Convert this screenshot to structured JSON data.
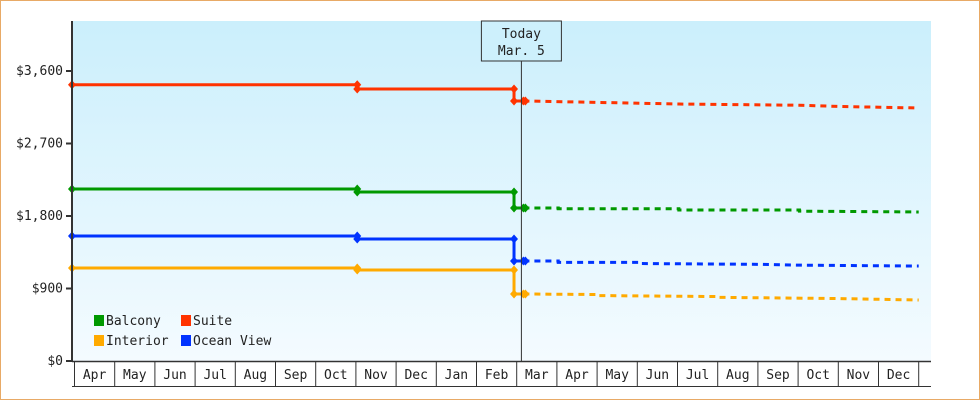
{
  "chart_data": {
    "type": "line",
    "title": "",
    "xlabel": "",
    "ylabel": "",
    "categories": [
      "Apr",
      "May",
      "Jun",
      "Jul",
      "Aug",
      "Sep",
      "Oct",
      "Nov",
      "Dec",
      "Jan",
      "Feb",
      "Mar",
      "Apr",
      "May",
      "Jun",
      "Jul",
      "Aug",
      "Sep",
      "Oct",
      "Nov",
      "Dec"
    ],
    "yticks": [
      {
        "value": 0,
        "label": "$0"
      },
      {
        "value": 900,
        "label": "$900"
      },
      {
        "value": 1800,
        "label": "$1,800"
      },
      {
        "value": 2700,
        "label": "$2,700"
      },
      {
        "value": 3600,
        "label": "$3,600"
      }
    ],
    "ylim": [
      0,
      3600
    ],
    "today": {
      "line1": "Today",
      "line2": "Mar. 5",
      "month_index": 11,
      "day": 5
    },
    "legend_position": "bottom-left",
    "series": [
      {
        "name": "Balcony",
        "color": "#009900",
        "history": [
          [
            0,
            0,
            2135
          ],
          [
            7,
            1,
            2135
          ],
          [
            7,
            1,
            2098
          ],
          [
            10,
            28,
            2098
          ],
          [
            10,
            28,
            1899
          ],
          [
            11,
            5,
            1899
          ]
        ],
        "forecast": [
          [
            11,
            5,
            1899
          ],
          [
            12,
            1,
            1899
          ],
          [
            12,
            1,
            1890
          ],
          [
            15,
            1,
            1890
          ],
          [
            15,
            1,
            1875
          ],
          [
            18,
            1,
            1875
          ],
          [
            18,
            1,
            1860
          ],
          [
            20,
            30,
            1850
          ]
        ]
      },
      {
        "name": "Suite",
        "color": "#ff3300",
        "history": [
          [
            0,
            0,
            3430
          ],
          [
            7,
            1,
            3430
          ],
          [
            7,
            1,
            3377
          ],
          [
            10,
            28,
            3377
          ],
          [
            10,
            28,
            3228
          ],
          [
            11,
            5,
            3228
          ]
        ],
        "forecast": [
          [
            11,
            5,
            3228
          ],
          [
            13,
            1,
            3210
          ],
          [
            15,
            1,
            3190
          ],
          [
            18,
            1,
            3175
          ],
          [
            19,
            1,
            3160
          ],
          [
            20,
            1,
            3150
          ],
          [
            20,
            30,
            3141
          ]
        ]
      },
      {
        "name": "Interior",
        "color": "#ffaa00",
        "history": [
          [
            0,
            0,
            1155
          ],
          [
            7,
            1,
            1155
          ],
          [
            7,
            1,
            1130
          ],
          [
            10,
            28,
            1130
          ],
          [
            10,
            28,
            832
          ],
          [
            11,
            5,
            832
          ]
        ],
        "forecast": [
          [
            11,
            5,
            832
          ],
          [
            13,
            1,
            825
          ],
          [
            13,
            1,
            812
          ],
          [
            16,
            1,
            800
          ],
          [
            16,
            1,
            790
          ],
          [
            19,
            1,
            775
          ],
          [
            20,
            30,
            757
          ]
        ]
      },
      {
        "name": "Ocean View",
        "color": "#0033ff",
        "history": [
          [
            0,
            0,
            1552
          ],
          [
            7,
            1,
            1552
          ],
          [
            7,
            1,
            1515
          ],
          [
            10,
            28,
            1515
          ],
          [
            10,
            28,
            1241
          ],
          [
            11,
            5,
            1241
          ]
        ],
        "forecast": [
          [
            11,
            5,
            1241
          ],
          [
            12,
            1,
            1241
          ],
          [
            12,
            1,
            1225
          ],
          [
            14,
            1,
            1225
          ],
          [
            14,
            1,
            1210
          ],
          [
            17,
            1,
            1200
          ],
          [
            18,
            1,
            1190
          ],
          [
            20,
            1,
            1182
          ],
          [
            20,
            30,
            1179
          ]
        ]
      }
    ],
    "legend_order": [
      0,
      1,
      2,
      3
    ]
  }
}
